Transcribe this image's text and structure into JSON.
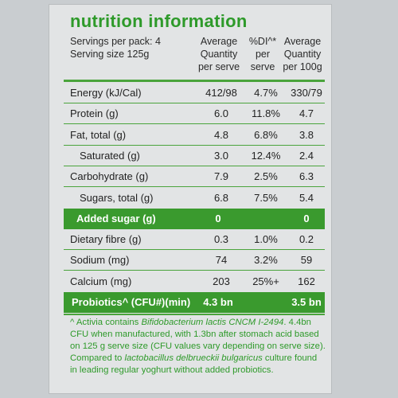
{
  "title": "nutrition information",
  "servings_per_pack": "Servings per pack: 4",
  "serving_size": "Serving size 125g",
  "columns": {
    "avg_serve": [
      "Average",
      "Quantity",
      "per serve"
    ],
    "di": [
      "%DI^*",
      "per",
      "serve"
    ],
    "avg_100g": [
      "Average",
      "Quantity",
      "per 100g"
    ]
  },
  "rows": [
    {
      "label": "Energy (kJ/Cal)",
      "serve": "412/98",
      "di": "4.7%",
      "per100": "330/79"
    },
    {
      "label": "Protein (g)",
      "serve": "6.0",
      "di": "11.8%",
      "per100": "4.7"
    },
    {
      "label": "Fat, total (g)",
      "serve": "4.8",
      "di": "6.8%",
      "per100": "3.8"
    },
    {
      "label": "Saturated (g)",
      "serve": "3.0",
      "di": "12.4%",
      "per100": "2.4"
    },
    {
      "label": "Carbohydrate (g)",
      "serve": "7.9",
      "di": "2.5%",
      "per100": "6.3"
    },
    {
      "label": "Sugars, total (g)",
      "serve": "6.8",
      "di": "7.5%",
      "per100": "5.4"
    },
    {
      "label": "Added sugar (g)",
      "serve": "0",
      "di": "",
      "per100": "0"
    },
    {
      "label": "Dietary fibre (g)",
      "serve": "0.3",
      "di": "1.0%",
      "per100": "0.2"
    },
    {
      "label": "Sodium (mg)",
      "serve": "74",
      "di": "3.2%",
      "per100": "59"
    },
    {
      "label": "Calcium (mg)",
      "serve": "203",
      "di": "25%+",
      "per100": "162"
    },
    {
      "label": "Probiotics^ (CFU#)(min)",
      "serve": "4.3 bn",
      "di": "",
      "per100": "3.5 bn"
    }
  ],
  "footnote": {
    "l1_pre": "^ Activia contains ",
    "l1_it": "Bifidobacterium lactis CNCM I-2494",
    "l1_post": ". 4.4bn",
    "l2": "CFU when manufactured, with 1.3bn after stomach acid based",
    "l3": "on 125 g serve size (CFU values vary depending on serve size).",
    "l4_pre": "Compared to ",
    "l4_it": "lactobacillus delbrueckii bulgaricus",
    "l4_post": " culture found",
    "l5": "in leading regular yoghurt without added probiotics."
  },
  "colors": {
    "accent": "#3a9a2e",
    "background": "#e2e4e5"
  }
}
